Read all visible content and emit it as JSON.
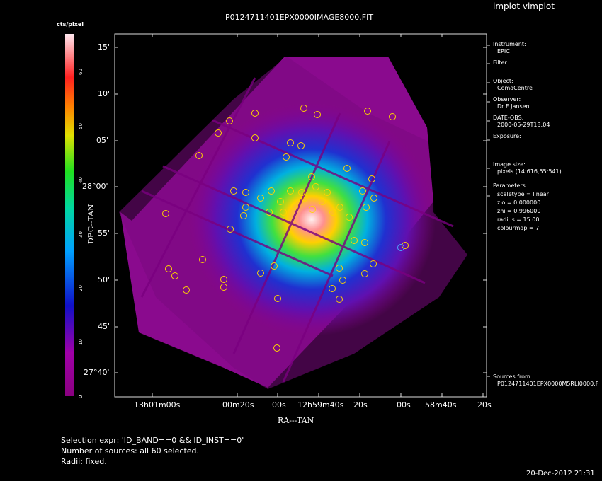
{
  "app_title": "implot vimplot",
  "image_title": "P0124711401EPX0000IMAGE8000.FIT",
  "colorbar": {
    "label": "cts/pixel",
    "ticks": [
      "0",
      "10",
      "20",
      "30",
      "40",
      "50",
      "60"
    ]
  },
  "axes": {
    "xlabel": "RA---TAN",
    "ylabel": "DEC--TAN",
    "x_ticks": [
      "13h01m00s",
      "00m20s",
      "00s",
      "12h59m40s",
      "20s",
      "00s",
      "58m40s",
      "20s"
    ],
    "y_ticks": [
      "15'",
      "10'",
      "05'",
      "28°00'",
      "55'",
      "50'",
      "45'",
      "27°40'"
    ]
  },
  "info": {
    "instrument_label": "Instrument:",
    "instrument_value": "EPIC",
    "filter_label": "Filter:",
    "object_label": "Object:",
    "object_value": "ComaCentre",
    "observer_label": "Observer:",
    "observer_value": "Dr F Jansen",
    "date_label": "DATE-OBS:",
    "date_value": "2000-05-29T13:04",
    "exposure_label": "Exposure:",
    "image_size_label": "Image size:",
    "image_size_value": "pixels (14:616,55:541)",
    "parameters_label": "Parameters:",
    "scaletype": "scaletype = linear",
    "zlo": "zlo =  0.000000",
    "zhi": "zhi =  0.996000",
    "radius": "radius =  15.00",
    "colourmap": "colourmap =    7",
    "sources_label": "Sources from:",
    "sources_value": "P0124711401EPX0000M5RLI0000.F"
  },
  "footer": {
    "selection": "Selection expr: 'ID_BAND==0 && ID_INST==0'",
    "number": "Number of sources: all 60 selected.",
    "radii": "Radii: fixed.",
    "timestamp": "20-Dec-2012 21:31"
  },
  "colors": {
    "cluster_core": "#ffe6e6",
    "source_circle": "#ffd400",
    "source_circle_blue": "#4aa8ff"
  }
}
